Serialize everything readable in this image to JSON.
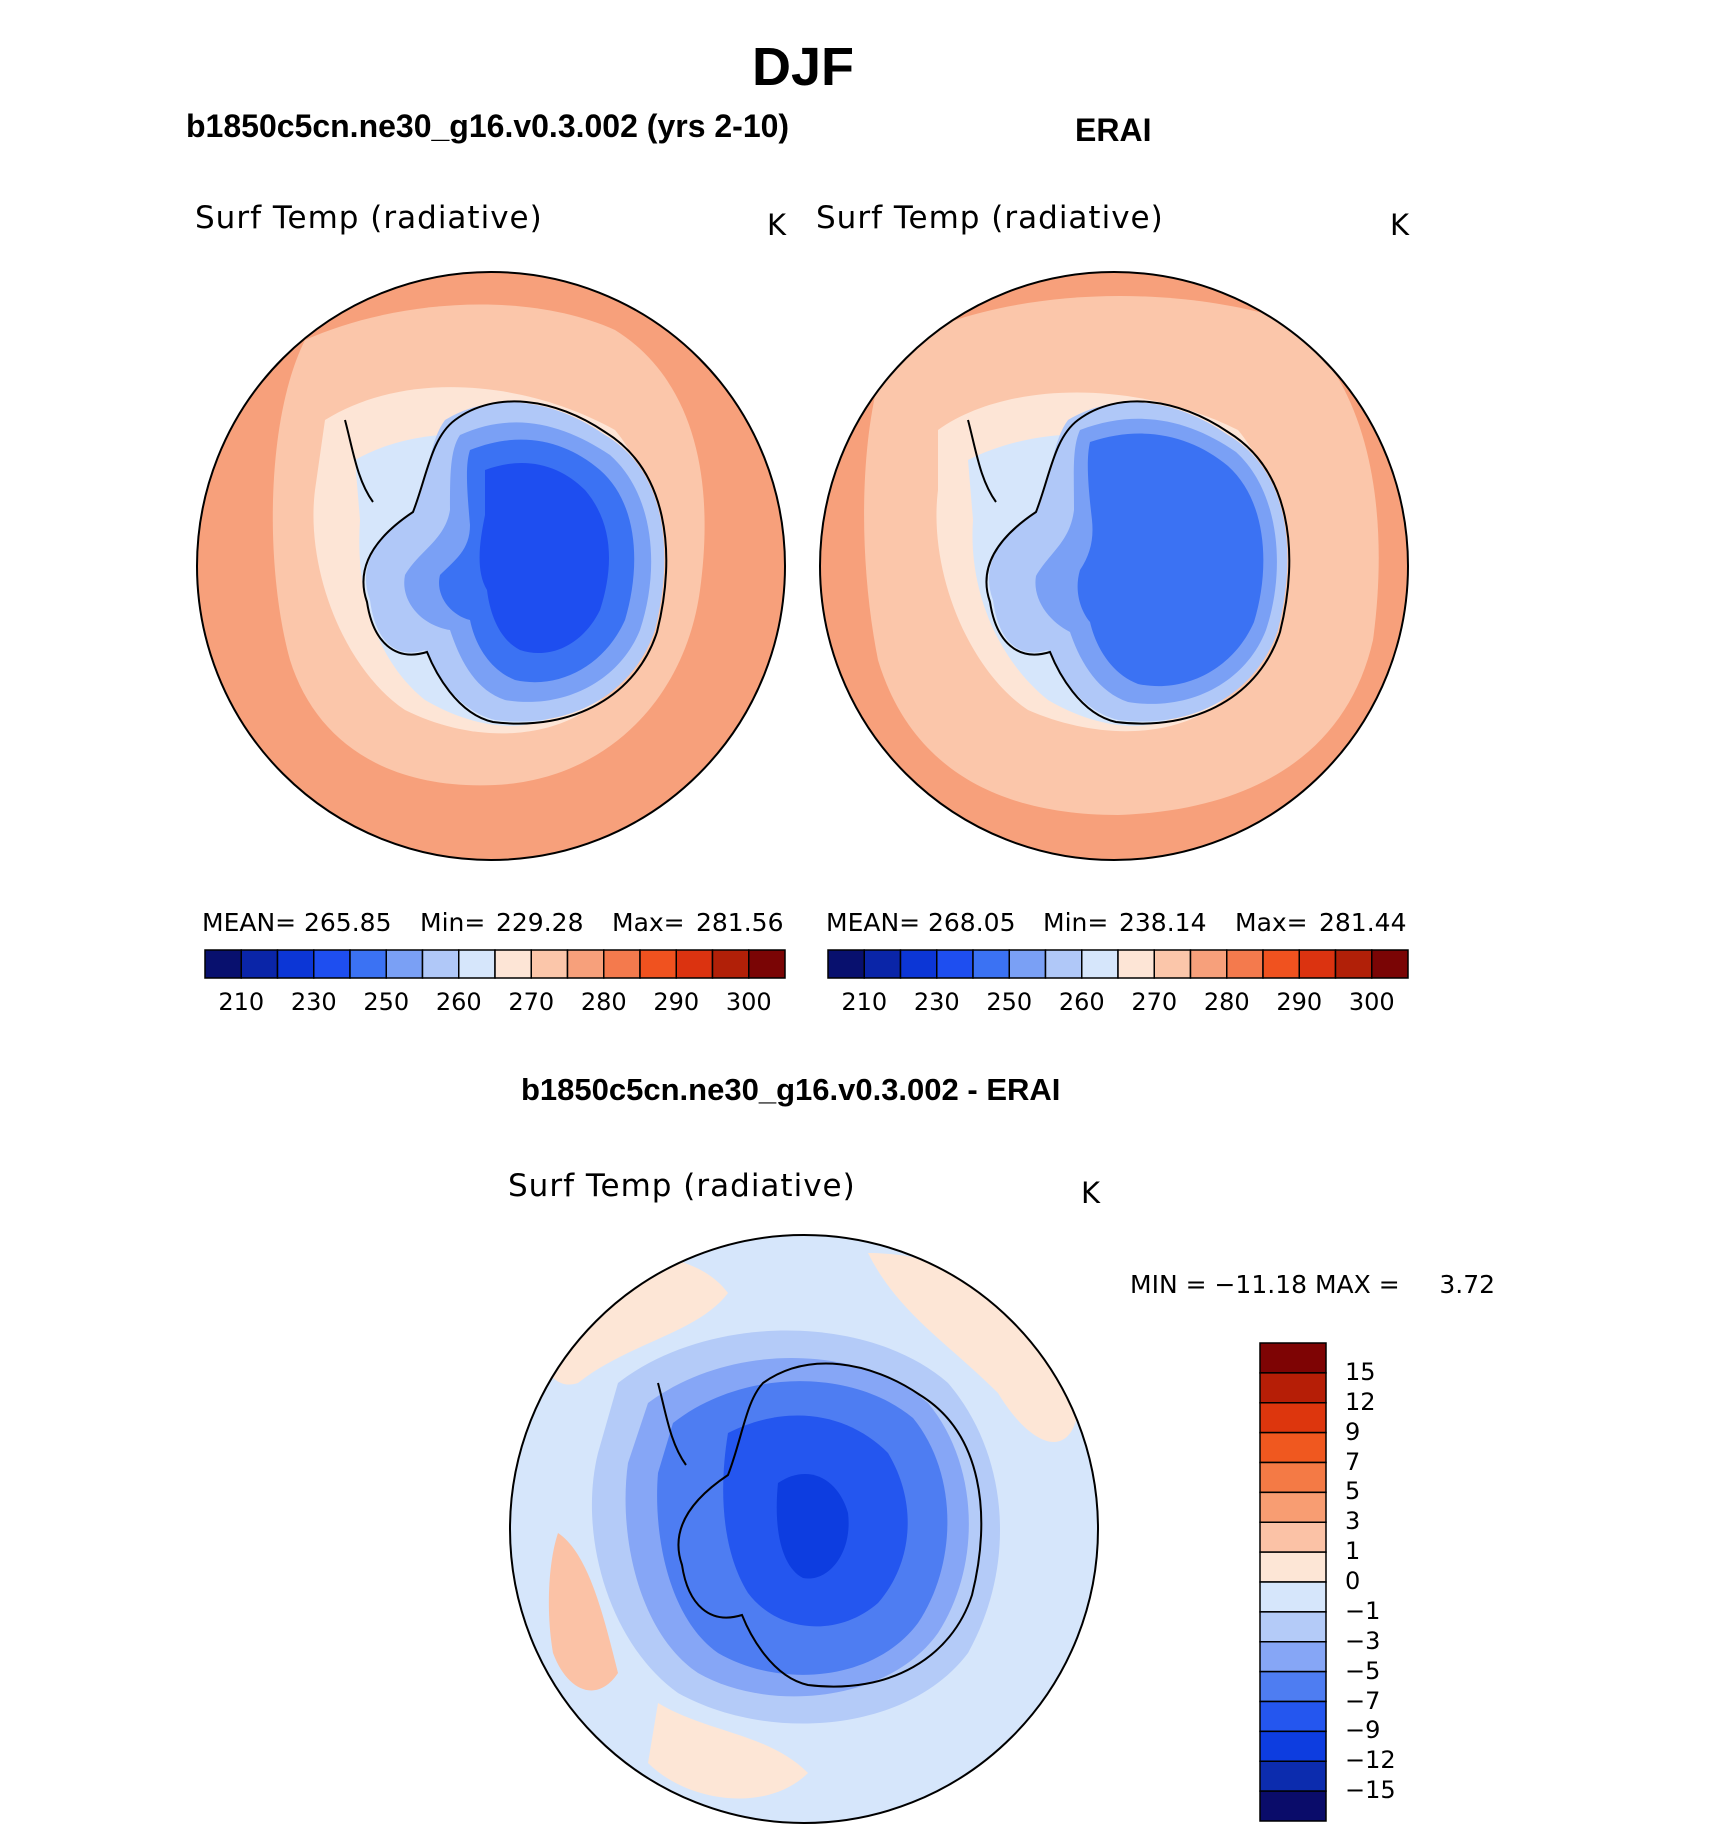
{
  "season": "DJF",
  "colors": {
    "abs_scale": [
      "#08106e",
      "#0a25a8",
      "#0c36d6",
      "#1e4ef0",
      "#3b72f3",
      "#7aa0f5",
      "#b0c8f8",
      "#d6e6fb",
      "#fde5d6",
      "#fbc6aa",
      "#f7a07b",
      "#f47a4d",
      "#f0521f",
      "#db3310",
      "#b12008",
      "#7a0505"
    ],
    "diff_scale": [
      "#0a0c6a",
      "#0c2cae",
      "#0d3de0",
      "#2456ef",
      "#4e7df2",
      "#86a6f6",
      "#b4cbf8",
      "#d6e6fb",
      "#fde6d6",
      "#fbc2a6",
      "#f89d72",
      "#f47a45",
      "#f0581f",
      "#dd360d",
      "#b61e06",
      "#7e0404"
    ],
    "outline": "#000000"
  },
  "panels": [
    {
      "title": "b1850c5cn.ne30_g16.v0.3.002 (yrs 2-10)",
      "variable": "Surf Temp (radiative)",
      "units": "K",
      "stats": {
        "mean_label": "MEAN=",
        "mean": "265.85",
        "min_label": "Min=",
        "min": "229.28",
        "max_label": "Max=",
        "max": "281.56"
      }
    },
    {
      "title": "ERAI",
      "variable": "Surf Temp (radiative)",
      "units": "K",
      "stats": {
        "mean_label": "MEAN=",
        "mean": "268.05",
        "min_label": "Min=",
        "min": "238.14",
        "max_label": "Max=",
        "max": "281.44"
      }
    }
  ],
  "abs_colorbar_labels": [
    "210",
    "230",
    "250",
    "260",
    "270",
    "280",
    "290",
    "300"
  ],
  "diff_panel": {
    "title": "b1850c5cn.ne30_g16.v0.3.002 - ERAI",
    "variable": "Surf Temp (radiative)",
    "units": "K",
    "range_text": "MIN = −11.18 MAX =     3.72",
    "colorbar_labels": [
      "15",
      "12",
      "9",
      "7",
      "5",
      "3",
      "1",
      "0",
      "−1",
      "−3",
      "−5",
      "−7",
      "−9",
      "−12",
      "−15"
    ]
  }
}
